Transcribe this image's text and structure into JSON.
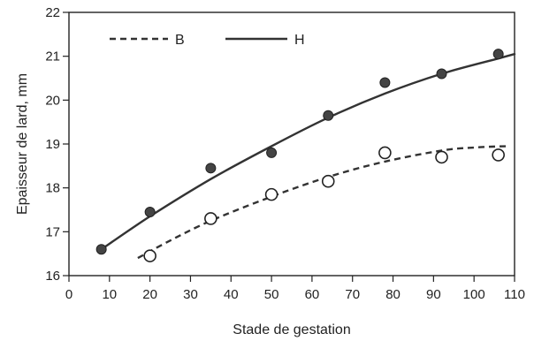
{
  "chart_data": {
    "type": "scatter",
    "title": "",
    "xlabel": "Stade de gestation",
    "ylabel": "Epaisseur de lard, mm",
    "xlim": [
      0,
      110
    ],
    "ylim": [
      16,
      22
    ],
    "x_ticks": [
      0,
      10,
      20,
      30,
      40,
      50,
      60,
      70,
      80,
      90,
      100,
      110
    ],
    "y_ticks": [
      16,
      17,
      18,
      19,
      20,
      21,
      22
    ],
    "grid": false,
    "legend_position": "top-left",
    "series": [
      {
        "name": "H",
        "marker": "filled-circle",
        "line_style": "solid",
        "color": "#333333",
        "points": [
          {
            "x": 8,
            "y": 16.6
          },
          {
            "x": 20,
            "y": 17.45
          },
          {
            "x": 35,
            "y": 18.45
          },
          {
            "x": 50,
            "y": 18.8
          },
          {
            "x": 64,
            "y": 19.65
          },
          {
            "x": 78,
            "y": 20.4
          },
          {
            "x": 92,
            "y": 20.6
          },
          {
            "x": 106,
            "y": 21.05
          }
        ],
        "fit_line": [
          {
            "x": 8,
            "y": 16.6
          },
          {
            "x": 20,
            "y": 17.35
          },
          {
            "x": 35,
            "y": 18.2
          },
          {
            "x": 50,
            "y": 18.95
          },
          {
            "x": 64,
            "y": 19.6
          },
          {
            "x": 78,
            "y": 20.15
          },
          {
            "x": 92,
            "y": 20.6
          },
          {
            "x": 106,
            "y": 20.95
          },
          {
            "x": 110,
            "y": 21.05
          }
        ]
      },
      {
        "name": "B",
        "marker": "open-circle",
        "line_style": "dashed",
        "color": "#333333",
        "points": [
          {
            "x": 20,
            "y": 16.45
          },
          {
            "x": 35,
            "y": 17.3
          },
          {
            "x": 50,
            "y": 17.85
          },
          {
            "x": 64,
            "y": 18.15
          },
          {
            "x": 78,
            "y": 18.8
          },
          {
            "x": 92,
            "y": 18.7
          },
          {
            "x": 106,
            "y": 18.75
          }
        ],
        "fit_line": [
          {
            "x": 17,
            "y": 16.4
          },
          {
            "x": 25,
            "y": 16.8
          },
          {
            "x": 35,
            "y": 17.25
          },
          {
            "x": 50,
            "y": 17.8
          },
          {
            "x": 64,
            "y": 18.25
          },
          {
            "x": 78,
            "y": 18.6
          },
          {
            "x": 92,
            "y": 18.85
          },
          {
            "x": 100,
            "y": 18.92
          },
          {
            "x": 108,
            "y": 18.95
          }
        ]
      }
    ],
    "legend": [
      {
        "label": "B",
        "line_style": "dashed"
      },
      {
        "label": "H",
        "line_style": "solid"
      }
    ]
  }
}
